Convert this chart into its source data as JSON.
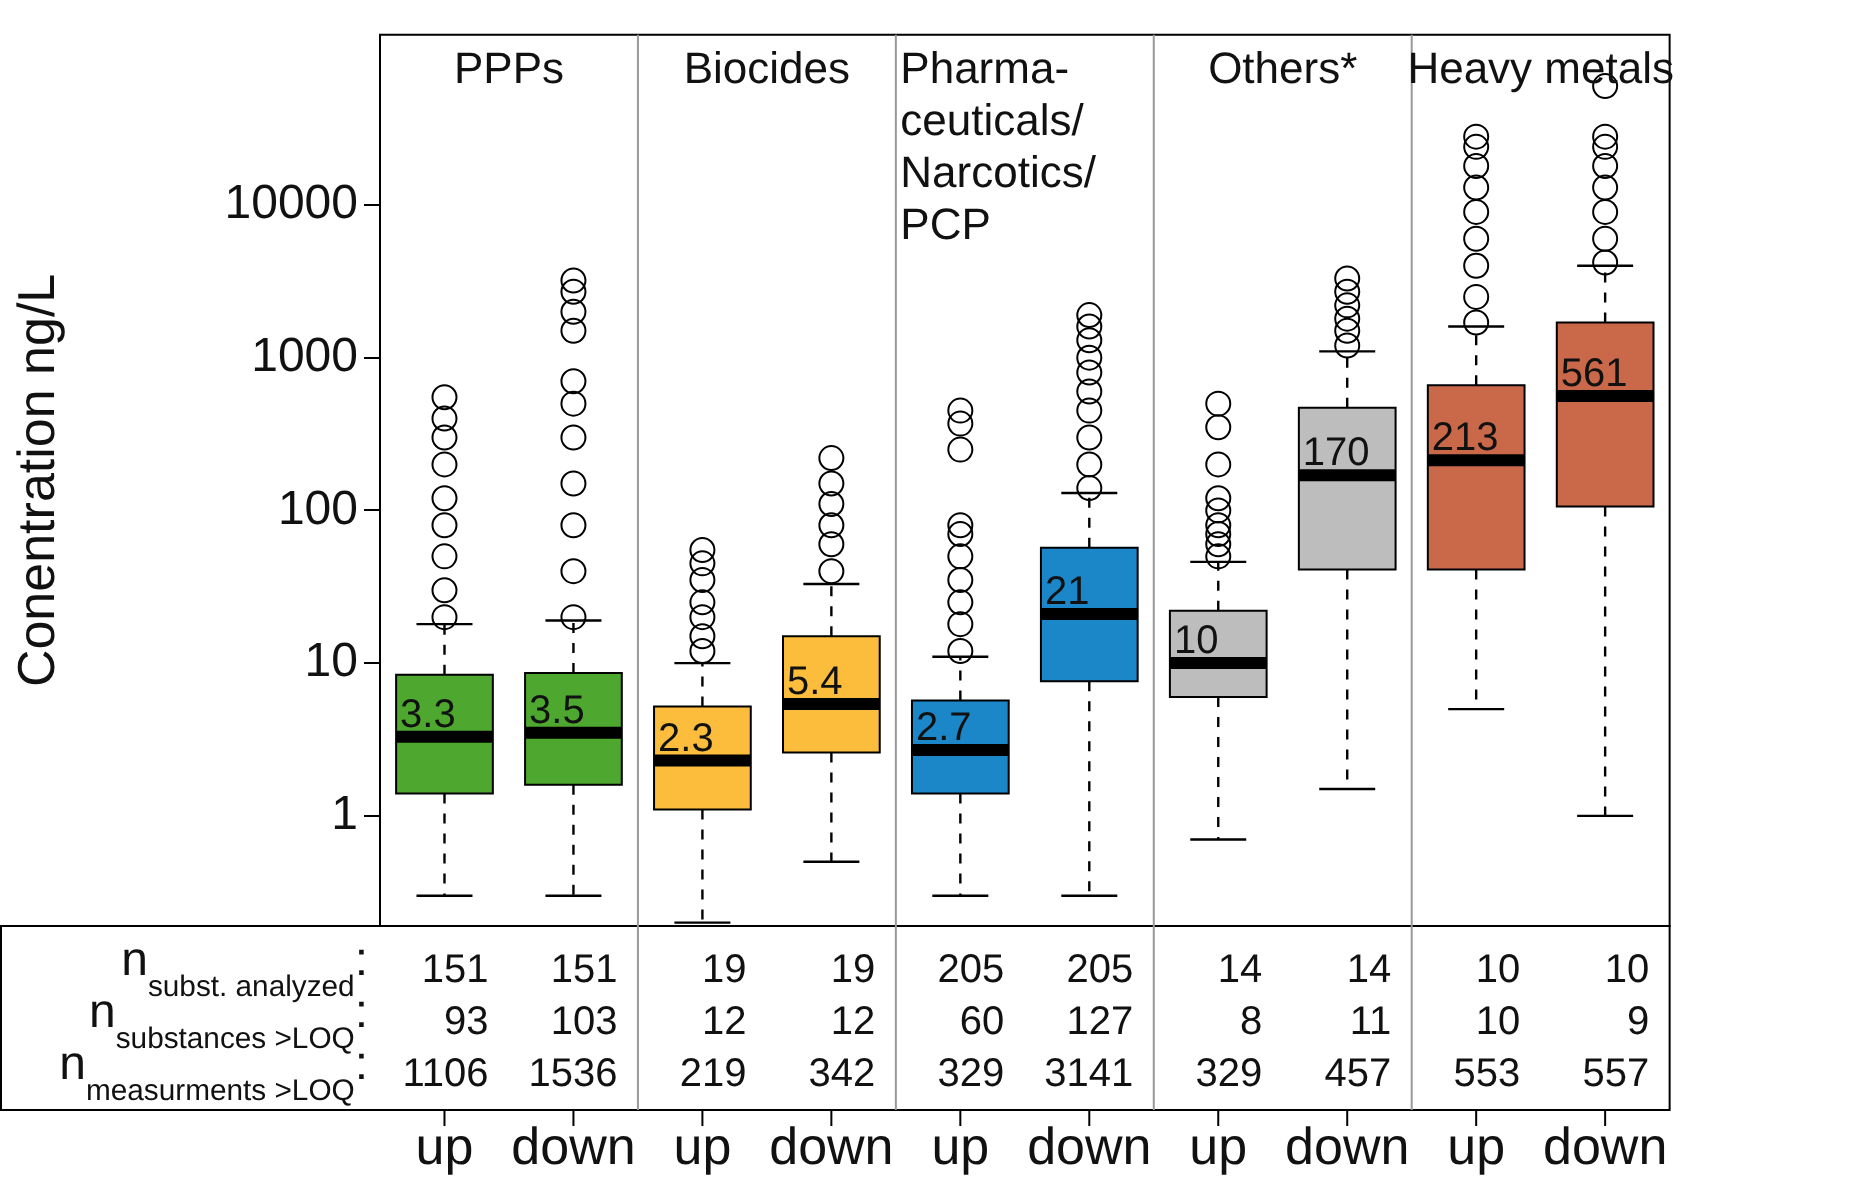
{
  "chart_data": {
    "type": "box",
    "ylabel": "Conentration ng/L",
    "log": true,
    "ylim": [
      0.19,
      130000
    ],
    "yticks": [
      1,
      10,
      100,
      1000,
      10000
    ],
    "value_labels": [
      "3.3",
      "3.5",
      "2.3",
      "5.4",
      "2.7",
      "21",
      "10",
      "170",
      "213",
      "561"
    ],
    "categories": [
      "up",
      "down",
      "up",
      "down",
      "up",
      "down",
      "up",
      "down",
      "up",
      "down"
    ],
    "colors": [
      "#4ea72e",
      "#4ea72e",
      "#fbbd3b",
      "#fbbd3b",
      "#1b87c9",
      "#1b87c9",
      "#bdbdbd",
      "#bdbdbd",
      "#c9694a",
      "#c9694a"
    ],
    "boxes": [
      {
        "low": 0.3,
        "q1": 1.4,
        "median": 3.3,
        "q3": 8.4,
        "high": 18,
        "outliers": [
          20,
          30,
          50,
          80,
          120,
          200,
          300,
          400,
          550
        ]
      },
      {
        "low": 0.3,
        "q1": 1.6,
        "median": 3.5,
        "q3": 8.6,
        "high": 19,
        "outliers": [
          20,
          40,
          80,
          150,
          300,
          500,
          700,
          1500,
          2000,
          2700,
          3200
        ]
      },
      {
        "low": 0.2,
        "q1": 1.1,
        "median": 2.3,
        "q3": 5.2,
        "high": 10,
        "outliers": [
          12,
          15,
          20,
          25,
          35,
          45,
          55
        ]
      },
      {
        "low": 0.5,
        "q1": 2.6,
        "median": 5.4,
        "q3": 15,
        "high": 33,
        "outliers": [
          40,
          60,
          80,
          110,
          150,
          220
        ]
      },
      {
        "low": 0.3,
        "q1": 1.4,
        "median": 2.7,
        "q3": 5.7,
        "high": 11,
        "outliers": [
          12,
          18,
          25,
          35,
          50,
          70,
          80,
          250,
          370,
          450
        ]
      },
      {
        "low": 0.3,
        "q1": 7.6,
        "median": 21,
        "q3": 57,
        "high": 130,
        "outliers": [
          140,
          200,
          300,
          450,
          600,
          800,
          1000,
          1300,
          1600,
          1900
        ]
      },
      {
        "low": 0.7,
        "q1": 6,
        "median": 10,
        "q3": 22,
        "high": 46,
        "outliers": [
          50,
          60,
          70,
          80,
          100,
          120,
          200,
          350,
          500
        ]
      },
      {
        "low": 1.5,
        "q1": 41,
        "median": 170,
        "q3": 470,
        "high": 1100,
        "outliers": [
          1200,
          1500,
          1800,
          2200,
          2700,
          3300
        ]
      },
      {
        "low": 5,
        "q1": 41,
        "median": 213,
        "q3": 660,
        "high": 1600,
        "outliers": [
          1700,
          2500,
          4000,
          6000,
          9000,
          13000,
          18000,
          24000,
          28000
        ]
      },
      {
        "low": 1,
        "q1": 106,
        "median": 561,
        "q3": 1700,
        "high": 4000,
        "outliers": [
          4200,
          6000,
          9000,
          13000,
          18000,
          24000,
          28000,
          60000
        ]
      }
    ],
    "annotations": [
      "PPPs",
      "Biocides",
      "Pharma-\nceuticals/\nNarcotics/\nPCP",
      "Others*",
      "Heavy metals",
      "n$_{subst. analyzed}$:",
      "n$_{substances >LOQ}$:",
      "n$_{measurments >LOQ}$:",
      "151",
      "151",
      "19",
      "19",
      "205",
      "205",
      "14",
      "14",
      "10",
      "10",
      "93",
      "103",
      "12",
      "12",
      "60",
      "127",
      "8",
      "11",
      "10",
      "9",
      "1106",
      "1536",
      "219",
      "342",
      "329",
      "3141",
      "329",
      "457",
      "553",
      "557"
    ]
  }
}
